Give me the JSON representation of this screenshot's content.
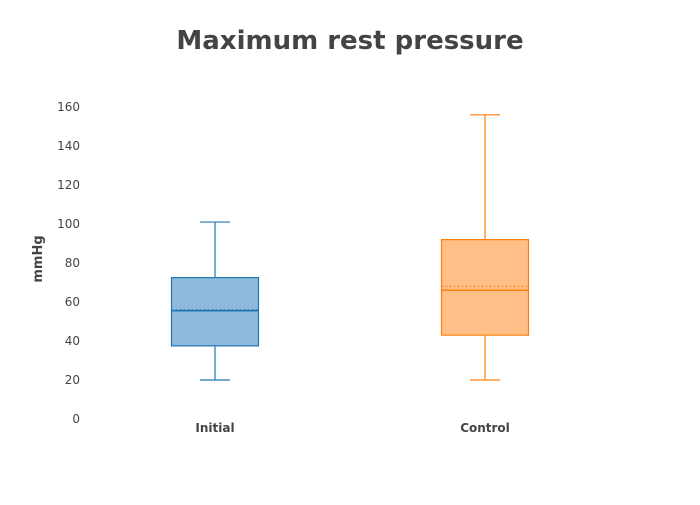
{
  "chart_data": {
    "type": "box",
    "title": "Maximum rest pressure",
    "xlabel": "",
    "ylabel": "mmHg",
    "ylim": [
      0,
      165
    ],
    "yticks": [
      0,
      20,
      40,
      60,
      80,
      100,
      120,
      140,
      160
    ],
    "grid": false,
    "categories": [
      "Initial",
      "Control"
    ],
    "series": [
      {
        "category": "Initial",
        "color": "#1f77b4",
        "fill": "#8fb9db",
        "min": 20,
        "q1": 37.5,
        "median": 55.5,
        "mean": 56,
        "q3": 72.5,
        "max": 101
      },
      {
        "category": "Control",
        "color": "#ff7f0e",
        "fill": "#ffbf87",
        "min": 20,
        "q1": 43,
        "median": 66,
        "mean": 68,
        "q3": 92,
        "max": 156
      }
    ]
  }
}
